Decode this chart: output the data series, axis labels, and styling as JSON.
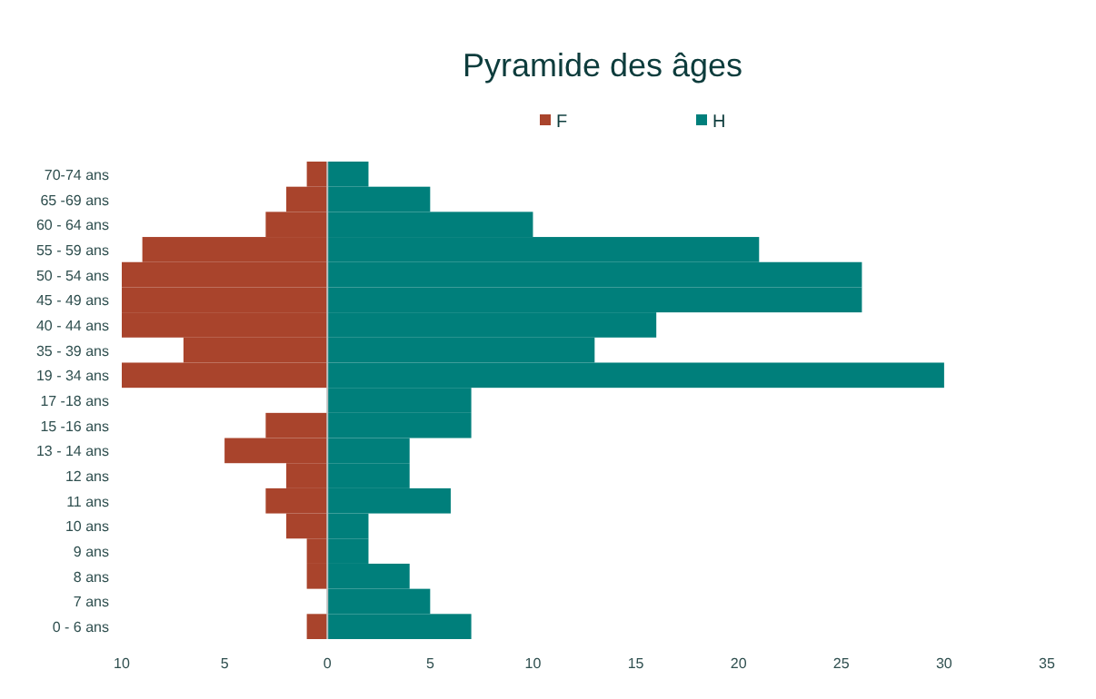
{
  "chart_data": {
    "type": "bar",
    "orientation": "horizontal",
    "stacked": true,
    "title": "Pyramide des âges",
    "categories": [
      "70-74 ans",
      "65 -69 ans",
      "60 - 64 ans",
      "55 - 59 ans",
      "50 - 54 ans",
      "45 - 49 ans",
      "40 - 44 ans",
      "35 - 39 ans",
      "19 - 34 ans",
      "17 -18 ans",
      "15 -16 ans",
      "13 - 14 ans",
      "12 ans",
      "11 ans",
      "10 ans",
      "9 ans",
      "8 ans",
      "7 ans",
      "0 - 6 ans"
    ],
    "series": [
      {
        "name": "F",
        "color": "#a9442c",
        "values": [
          -1,
          -2,
          -3,
          -9,
          -10,
          -10,
          -10,
          -7,
          -10,
          0,
          -3,
          -5,
          -2,
          -3,
          -2,
          -1,
          -1,
          0,
          -1
        ]
      },
      {
        "name": "H",
        "color": "#007f7b",
        "values": [
          2,
          5,
          10,
          21,
          26,
          26,
          16,
          13,
          30,
          7,
          7,
          4,
          4,
          6,
          2,
          2,
          4,
          5,
          7
        ]
      }
    ],
    "xlim": [
      -10,
      35
    ],
    "xticks": [
      {
        "value": -10,
        "label": "10"
      },
      {
        "value": -5,
        "label": "5"
      },
      0,
      5,
      10,
      15,
      20,
      25,
      30,
      35
    ],
    "legend": "top"
  }
}
